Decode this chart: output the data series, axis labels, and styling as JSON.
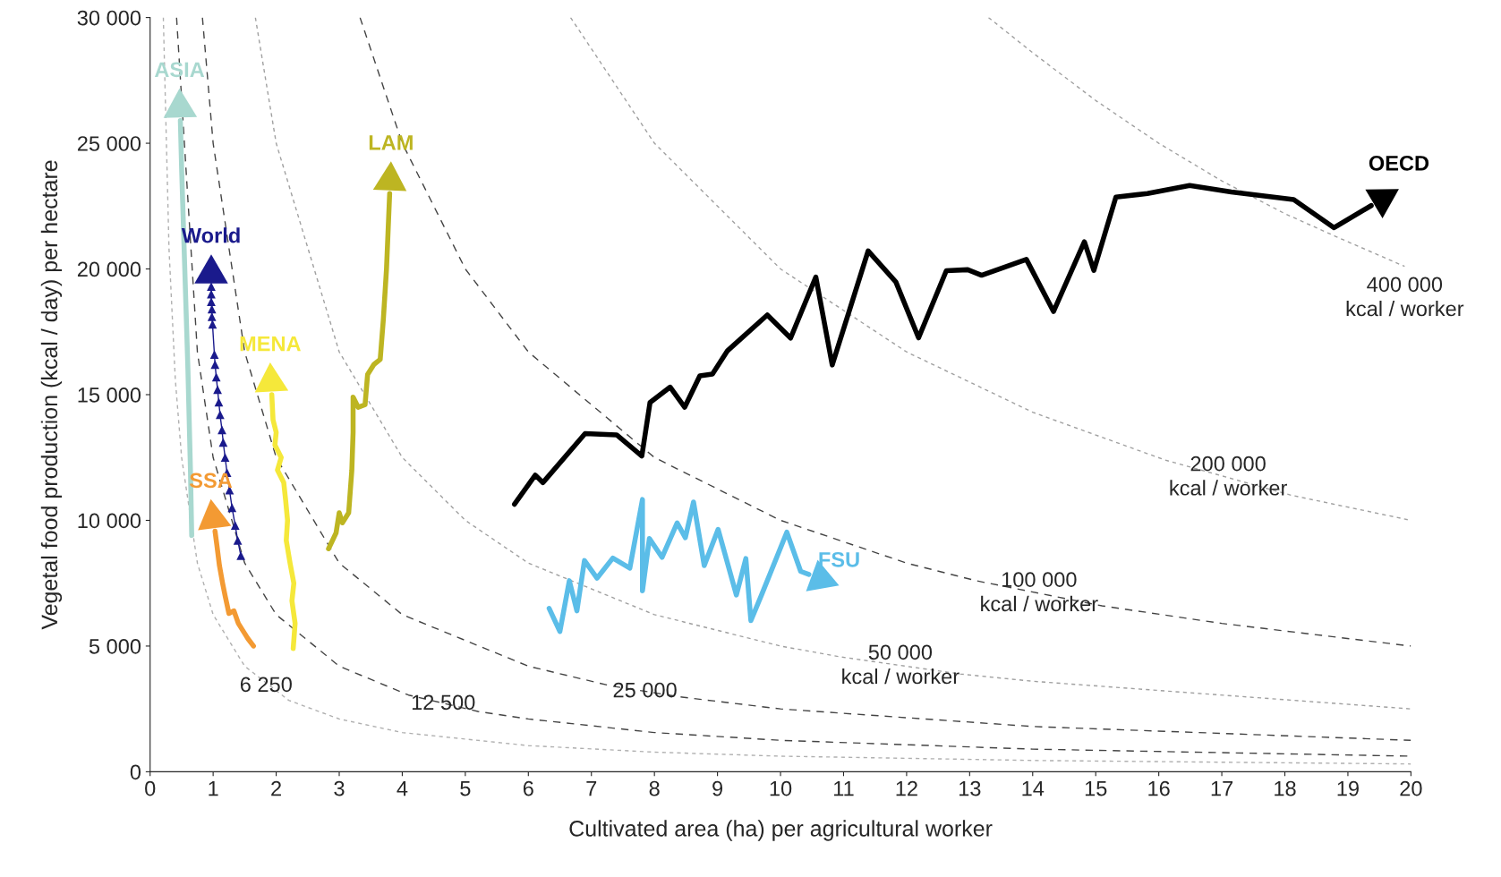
{
  "chart_data": {
    "type": "line",
    "xlabel": "Cultivated area (ha) per agricultural worker",
    "ylabel": "Vegetal food production (kcal / day) per hectare",
    "xlim": [
      0,
      20
    ],
    "ylim": [
      0,
      30000
    ],
    "xticks": [
      0,
      1,
      2,
      3,
      4,
      5,
      6,
      7,
      8,
      9,
      10,
      11,
      12,
      13,
      14,
      15,
      16,
      17,
      18,
      19,
      20
    ],
    "yticks": [
      {
        "value": 0,
        "label": "0"
      },
      {
        "value": 5000,
        "label": "5 000"
      },
      {
        "value": 10000,
        "label": "10 000"
      },
      {
        "value": 15000,
        "label": "15 000"
      },
      {
        "value": 20000,
        "label": "20 000"
      },
      {
        "value": 25000,
        "label": "25 000"
      },
      {
        "value": 30000,
        "label": "30 000"
      }
    ],
    "grid": false,
    "legend": false,
    "series": [
      {
        "color": "#b0b0b0",
        "line_style": "dotted",
        "x": [
          0.21,
          0.3,
          0.4,
          0.5,
          0.75,
          1,
          1.5,
          1.84,
          2.2,
          3,
          4,
          6,
          8,
          10,
          14,
          20
        ],
        "values": [
          30000,
          20800,
          15600,
          12500,
          8300,
          6250,
          4200,
          null,
          2840,
          2100,
          1560,
          1040,
          780,
          620,
          450,
          310
        ]
      },
      {
        "color": "#444444",
        "line_style": "dashed",
        "x": [
          0.42,
          0.75,
          1,
          1.5,
          2,
          3,
          4.1,
          4.65,
          5.2,
          6,
          8,
          10,
          14,
          20
        ],
        "values": [
          30000,
          16700,
          12500,
          8300,
          6250,
          4200,
          3050,
          null,
          2400,
          2100,
          1560,
          1250,
          900,
          620
        ]
      },
      {
        "color": "#444444",
        "line_style": "dashed",
        "x": [
          0.83,
          1,
          1.5,
          2,
          3,
          4,
          6,
          7.3,
          7.85,
          8.4,
          10,
          14,
          20
        ],
        "values": [
          30000,
          25000,
          16700,
          12500,
          8300,
          6250,
          4200,
          3420,
          null,
          2980,
          2500,
          1800,
          1250
        ]
      },
      {
        "color": "#a0a0a0",
        "line_style": "dotted",
        "x": [
          1.67,
          2,
          3,
          4,
          5,
          6,
          8,
          10,
          10.95,
          11.9,
          12.85,
          14,
          20
        ],
        "values": [
          30000,
          25000,
          16700,
          12500,
          10000,
          8300,
          6250,
          5000,
          4570,
          null,
          3890,
          3600,
          2500
        ]
      },
      {
        "color": "#444444",
        "line_style": "dashed",
        "x": [
          3.33,
          4,
          5,
          6,
          8,
          10,
          12,
          13.1,
          14.1,
          15.1,
          17,
          20
        ],
        "values": [
          30000,
          25000,
          20000,
          16700,
          12500,
          10000,
          8300,
          7600,
          null,
          6600,
          5900,
          5000
        ]
      },
      {
        "color": "#a0a0a0",
        "line_style": "dotted",
        "x": [
          6.67,
          8,
          10,
          12,
          14,
          16.1,
          17.1,
          18.1,
          20
        ],
        "values": [
          30000,
          25000,
          20000,
          16700,
          14300,
          12400,
          null,
          11000,
          10000
        ]
      },
      {
        "color": "#a0a0a0",
        "line_style": "dotted",
        "x": [
          13.3,
          14,
          15,
          16,
          17,
          18,
          18.8,
          19.9
        ],
        "values": [
          30000,
          28600,
          26700,
          25000,
          23500,
          22200,
          21300,
          20100
        ]
      },
      {
        "name": "ASIA",
        "color": "#a8d8cf",
        "line_style": "solid",
        "x": [
          0.66,
          0.64,
          0.6,
          0.55,
          0.5,
          0.48
        ],
        "values": [
          9400,
          12000,
          16000,
          20000,
          24000,
          25900
        ]
      },
      {
        "name": "SSA",
        "color": "#f39a33",
        "line_style": "solid",
        "x": [
          1.64,
          1.55,
          1.5,
          1.4,
          1.33,
          1.25,
          1.19,
          1.15,
          1.1,
          1.06,
          1.03
        ],
        "values": [
          5000,
          5300,
          5500,
          5900,
          6400,
          6300,
          7000,
          7500,
          8200,
          9000,
          9570
        ]
      },
      {
        "name": "World",
        "color": "#1a1a8c",
        "line_style": "solid",
        "marker": "triangle",
        "x": [
          1.44,
          1.39,
          1.35,
          1.3,
          1.26,
          1.22,
          1.19,
          1.16,
          1.14,
          1.11,
          1.09,
          1.07,
          1.05,
          1.03,
          1.02,
          0.99,
          0.98,
          0.98,
          0.97,
          0.97,
          0.97
        ],
        "values": [
          8600,
          9200,
          9800,
          10500,
          11200,
          11900,
          12500,
          13100,
          13600,
          14200,
          14700,
          15200,
          15700,
          16200,
          16600,
          17800,
          18100,
          18400,
          18700,
          19000,
          19300
        ]
      },
      {
        "name": "MENA",
        "color": "#f5e83a",
        "line_style": "solid",
        "x": [
          2.27,
          2.3,
          2.25,
          2.28,
          2.22,
          2.16,
          2.18,
          2.15,
          2.12,
          2.02,
          2.08,
          1.98,
          2.0,
          1.95,
          1.93
        ],
        "values": [
          4900,
          5900,
          6800,
          7500,
          8300,
          9200,
          10000,
          10800,
          11500,
          12000,
          12500,
          13000,
          13500,
          14000,
          15000
        ]
      },
      {
        "name": "LAM",
        "color": "#bdb522",
        "line_style": "solid",
        "x": [
          2.83,
          2.95,
          3.0,
          3.05,
          3.15,
          3.2,
          3.22,
          3.22,
          3.3,
          3.41,
          3.45,
          3.55,
          3.65,
          3.7,
          3.75,
          3.8
        ],
        "values": [
          8870,
          9500,
          10300,
          9900,
          10300,
          12000,
          13500,
          14900,
          14500,
          14600,
          15800,
          16200,
          16400,
          18000,
          20000,
          23000
        ]
      },
      {
        "name": "FSU",
        "color": "#5bbde8",
        "line_style": "solid",
        "x": [
          6.33,
          6.5,
          6.65,
          6.77,
          6.89,
          7.09,
          7.34,
          7.61,
          7.81,
          7.81,
          7.92,
          8.12,
          8.36,
          8.49,
          8.62,
          8.79,
          9.01,
          9.3,
          9.45,
          9.53,
          9.7,
          10.1,
          10.32,
          10.45
        ],
        "values": [
          6500,
          5580,
          7600,
          6400,
          8400,
          7700,
          8500,
          8100,
          10830,
          7200,
          9280,
          8530,
          9900,
          9310,
          10730,
          8200,
          9640,
          7030,
          8480,
          6010,
          7040,
          9530,
          7970,
          7850
        ]
      },
      {
        "name": "OECD",
        "color": "#000000",
        "line_style": "solid",
        "x": [
          5.78,
          6.11,
          6.23,
          6.9,
          7.4,
          7.8,
          7.93,
          8.25,
          8.48,
          8.72,
          8.92,
          9.16,
          9.79,
          10.16,
          10.56,
          10.82,
          11.39,
          11.83,
          12.19,
          12.63,
          12.97,
          13.19,
          13.9,
          14.33,
          14.82,
          14.97,
          15.32,
          15.82,
          16.49,
          17.15,
          18.14,
          18.78,
          19.37
        ],
        "values": [
          10640,
          11800,
          11500,
          13450,
          13400,
          12560,
          14690,
          15300,
          14500,
          15750,
          15820,
          16750,
          18170,
          17250,
          19680,
          16180,
          20720,
          19480,
          17260,
          19930,
          19970,
          19750,
          20380,
          18310,
          21080,
          19940,
          22860,
          23000,
          23320,
          23060,
          22760,
          21640,
          22520
        ]
      }
    ],
    "annotations": [
      {
        "text": "6 250",
        "x": 1.84,
        "y": 3400
      },
      {
        "text": "12 500",
        "x": 4.65,
        "y": 2690
      },
      {
        "text": "25 000",
        "x": 7.85,
        "y": 3180
      },
      {
        "text": "50 000\nkcal / worker",
        "x": 11.9,
        "y": 4200
      },
      {
        "text": "100 000\nkcal / worker",
        "x": 14.1,
        "y": 7090
      },
      {
        "text": "200 000\nkcal / worker",
        "x": 17.1,
        "y": 11700
      },
      {
        "text": "400 000\nkcal / worker",
        "x": 19.9,
        "y": 20100
      }
    ]
  }
}
